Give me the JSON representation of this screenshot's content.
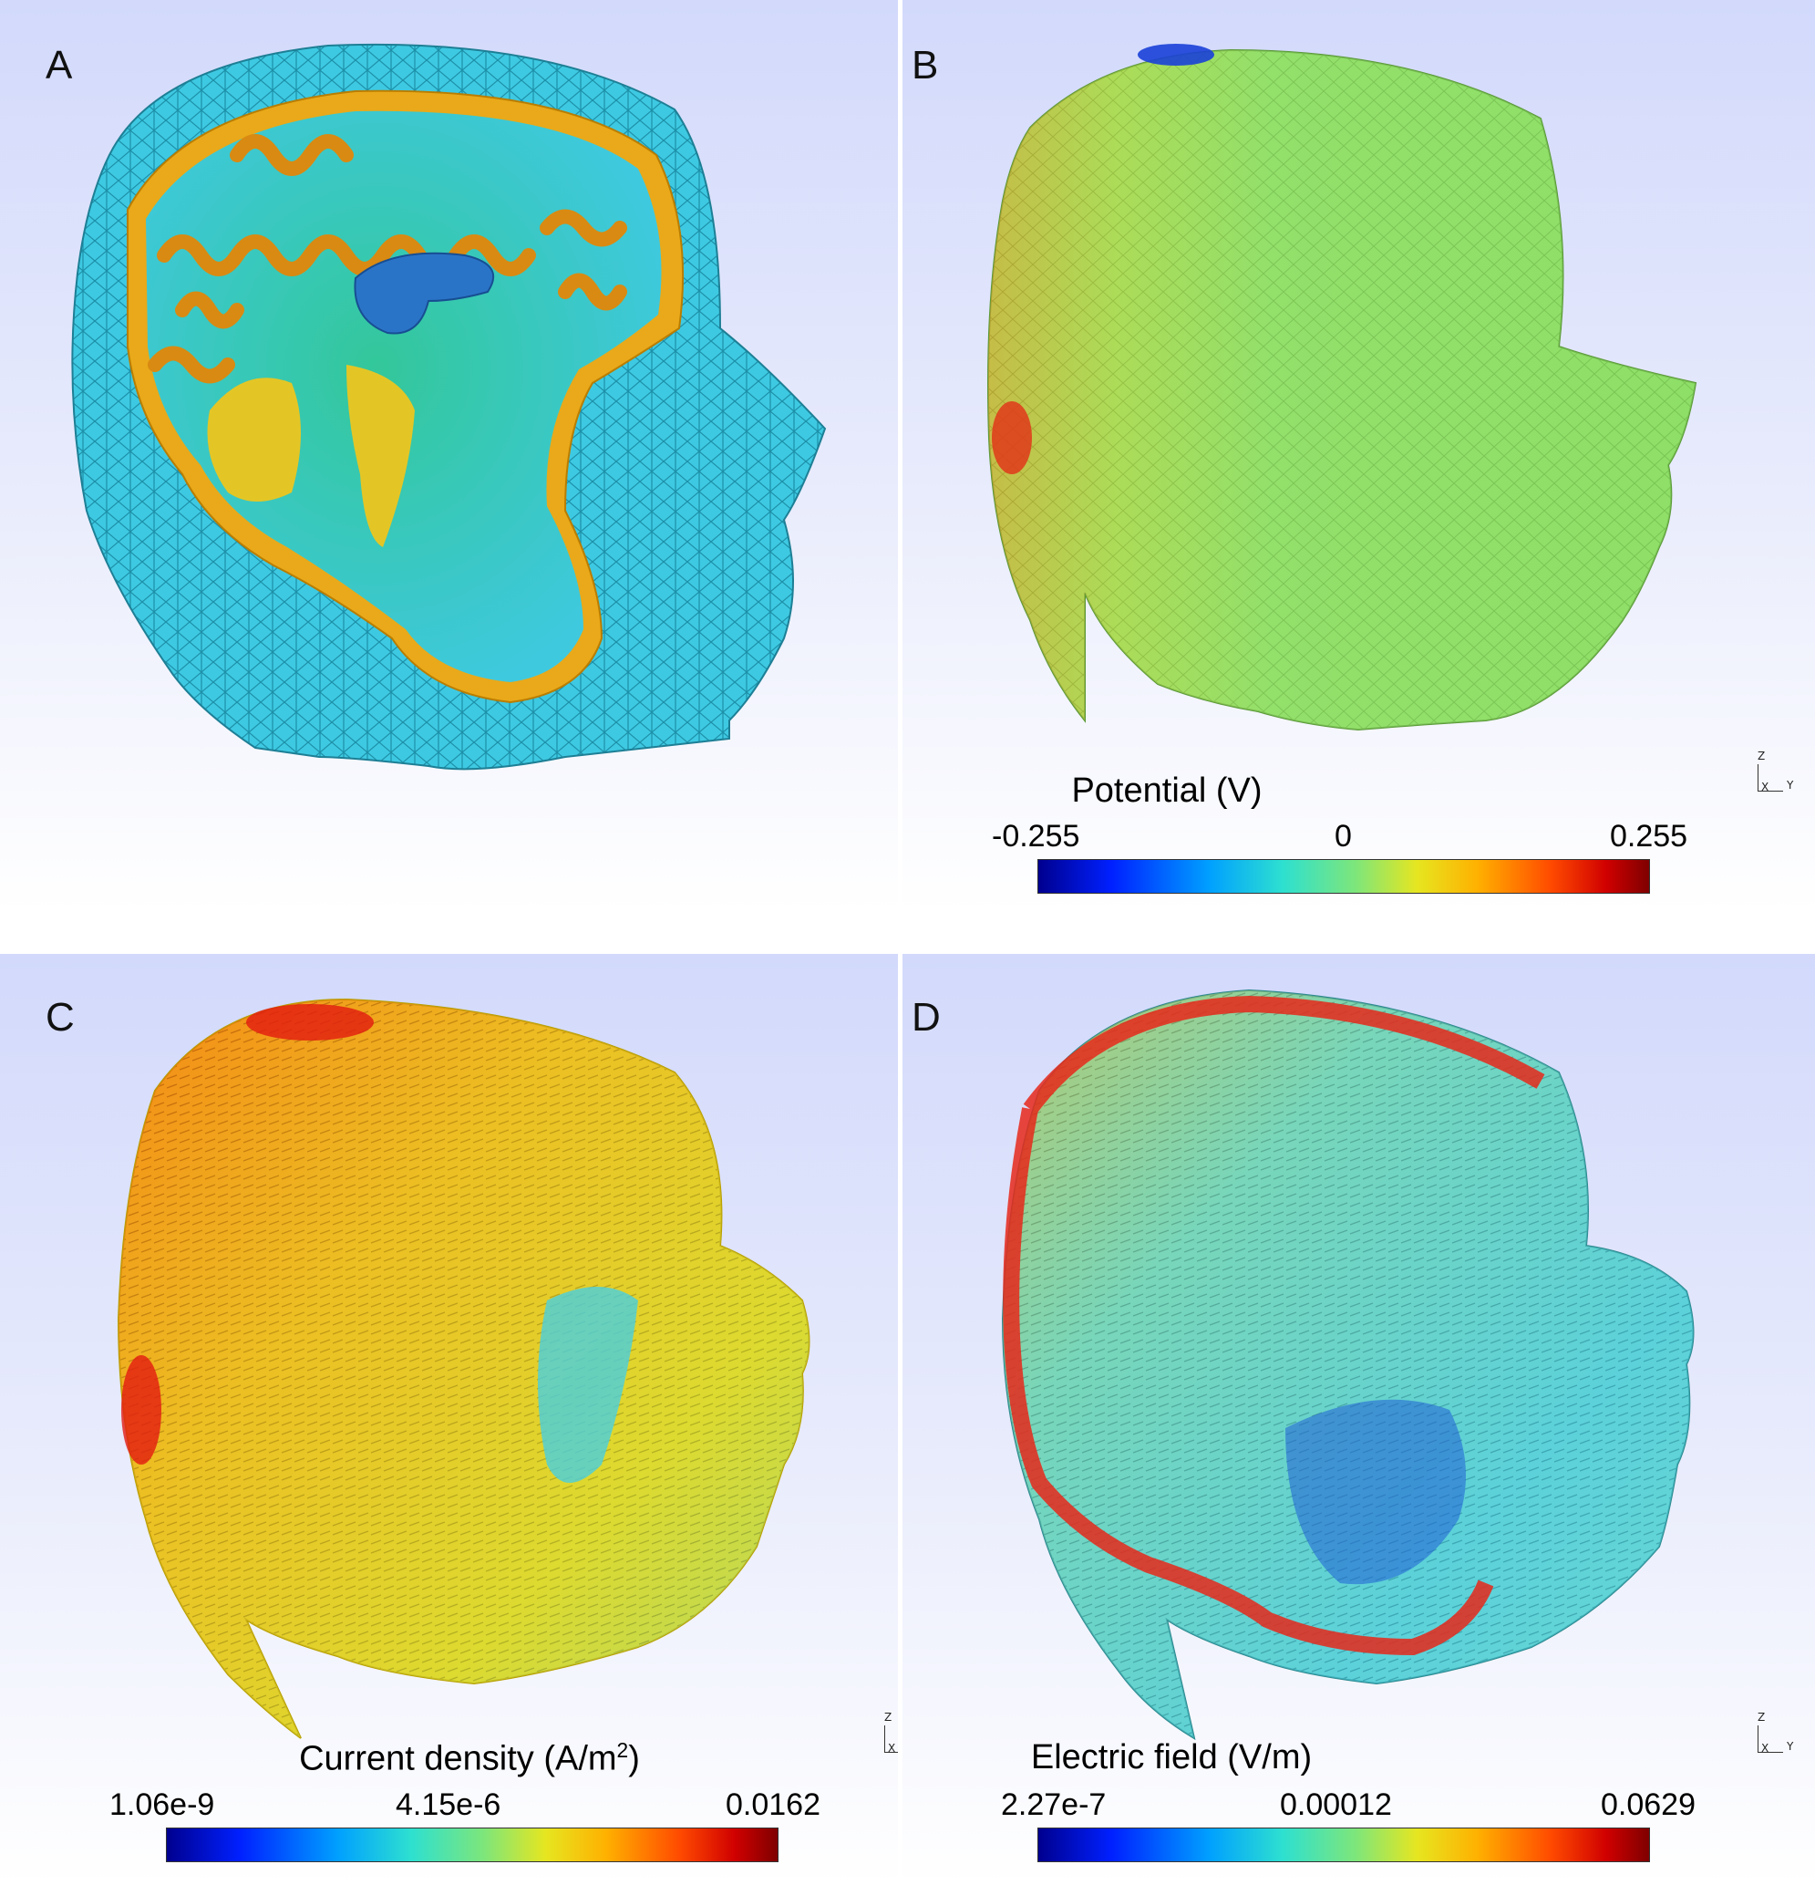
{
  "panels": {
    "a": {
      "letter": "A"
    },
    "b": {
      "letter": "B",
      "colorbar": {
        "title": "Potential (V)",
        "min": "-0.255",
        "mid": "0",
        "max": "0.255"
      }
    },
    "c": {
      "letter": "C",
      "colorbar": {
        "title_main": "Current density (A/m",
        "title_sup": "2",
        "title_end": ")",
        "min": "1.06e-9",
        "mid": "4.15e-6",
        "max": "0.0162"
      }
    },
    "d": {
      "letter": "D",
      "colorbar": {
        "title": "Electric field (V/m)",
        "min": "2.27e-7",
        "mid": "0.00012",
        "max": "0.0629"
      }
    }
  },
  "axes_triad": {
    "z": "Z",
    "x": "X",
    "y": "Y"
  },
  "colors": {
    "background_top": "#d6dcfa",
    "background_bottom": "#ffffff",
    "colormap": [
      "#00008f",
      "#0020ff",
      "#00a0ff",
      "#2de0d0",
      "#7ee67a",
      "#e6e620",
      "#ffb000",
      "#ff4a00",
      "#d00000",
      "#7f0000"
    ]
  }
}
